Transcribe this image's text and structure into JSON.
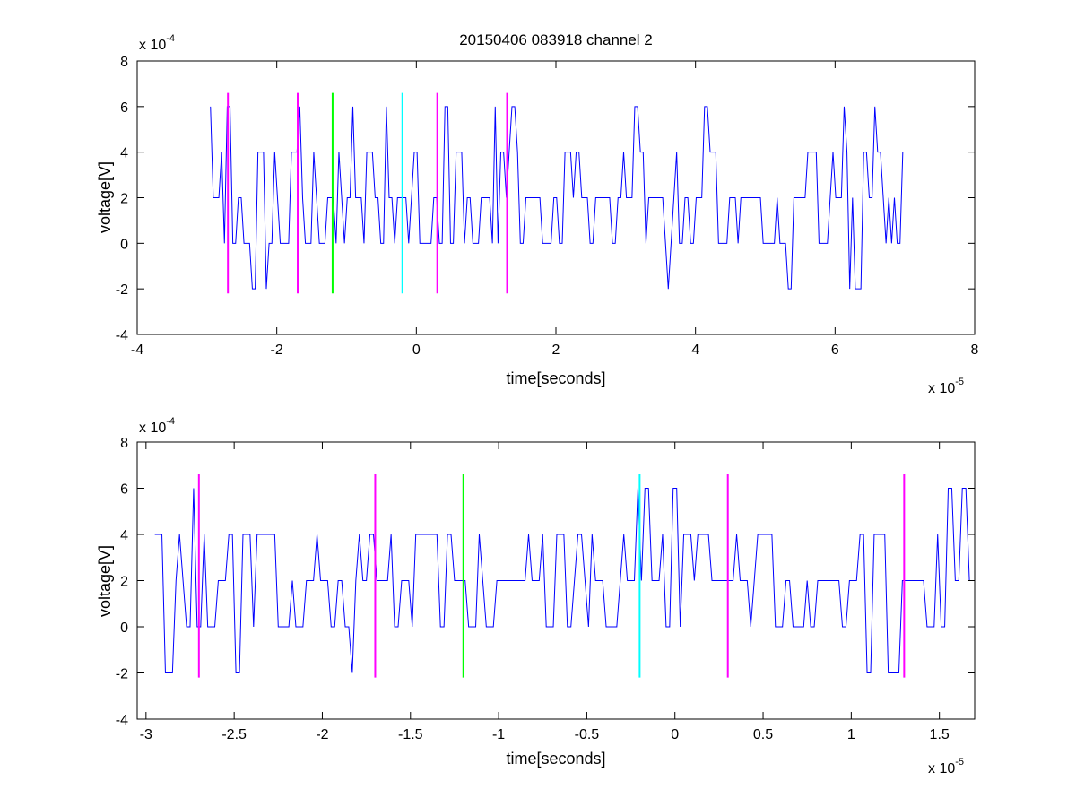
{
  "figure_title": "20150406 083918 channel 2",
  "colors": {
    "signal": "#0000ff",
    "marker_magenta": "#ff00ff",
    "marker_green": "#00ff00",
    "marker_cyan": "#00ffff",
    "axes": "#000000",
    "background": "#ffffff"
  },
  "chart_data": [
    {
      "type": "line",
      "title": "20150406 083918 channel 2",
      "xlabel": "time[seconds]",
      "ylabel": "voltage[V]",
      "xlim": [
        -4,
        8
      ],
      "ylim": [
        -4,
        8
      ],
      "x_exponent_label": {
        "base": "x 10",
        "exp": "-5"
      },
      "y_exponent_label": {
        "base": "x 10",
        "exp": "-4"
      },
      "x_ticks": [
        -4,
        -2,
        0,
        2,
        4,
        6,
        8
      ],
      "x_tick_labels": [
        "-4",
        "-2",
        "0",
        "2",
        "4",
        "6",
        "8"
      ],
      "y_ticks": [
        -4,
        -2,
        0,
        2,
        4,
        6,
        8
      ],
      "y_tick_labels": [
        "-4",
        "-2",
        "0",
        "2",
        "4",
        "6",
        "8"
      ],
      "grid": false,
      "series": [
        {
          "x_start": -2.95,
          "x_end": 7.0,
          "step": 0.04,
          "seed": 20150406,
          "levels": [
            -2,
            0,
            2,
            4,
            6
          ],
          "level_weights": [
            0.05,
            0.25,
            0.42,
            0.24,
            0.04
          ],
          "hold_probability": 0.35
        }
      ],
      "markers": [
        {
          "x": -2.7,
          "color": "marker_magenta",
          "y_range": [
            -2.2,
            6.6
          ]
        },
        {
          "x": -1.7,
          "color": "marker_magenta",
          "y_range": [
            -2.2,
            6.6
          ]
        },
        {
          "x": -1.2,
          "color": "marker_green",
          "y_range": [
            -2.2,
            6.6
          ]
        },
        {
          "x": -0.2,
          "color": "marker_cyan",
          "y_range": [
            -2.2,
            6.6
          ]
        },
        {
          "x": 0.3,
          "color": "marker_magenta",
          "y_range": [
            -2.2,
            6.6
          ]
        },
        {
          "x": 1.3,
          "color": "marker_magenta",
          "y_range": [
            -2.2,
            6.6
          ]
        }
      ]
    },
    {
      "type": "line",
      "title": "",
      "xlabel": "time[seconds]",
      "ylabel": "voltage[V]",
      "xlim": [
        -3.05,
        1.7
      ],
      "ylim": [
        -4,
        8
      ],
      "x_exponent_label": {
        "base": "x 10",
        "exp": "-5"
      },
      "y_exponent_label": {
        "base": "x 10",
        "exp": "-4"
      },
      "x_ticks": [
        -3,
        -2.5,
        -2,
        -1.5,
        -1,
        -0.5,
        0,
        0.5,
        1,
        1.5
      ],
      "x_tick_labels": [
        "-3",
        "-2.5",
        "-2",
        "-1.5",
        "-1",
        "-0.5",
        "0",
        "0.5",
        "1",
        "1.5"
      ],
      "y_ticks": [
        -4,
        -2,
        0,
        2,
        4,
        6,
        8
      ],
      "y_tick_labels": [
        "-4",
        "-2",
        "0",
        "2",
        "4",
        "6",
        "8"
      ],
      "grid": false,
      "series": [
        {
          "x_start": -2.95,
          "x_end": 1.7,
          "step": 0.02,
          "seed": 83918,
          "levels": [
            -2,
            0,
            2,
            4,
            6
          ],
          "level_weights": [
            0.05,
            0.25,
            0.45,
            0.22,
            0.03
          ],
          "hold_probability": 0.4
        }
      ],
      "markers": [
        {
          "x": -2.7,
          "color": "marker_magenta",
          "y_range": [
            -2.2,
            6.6
          ]
        },
        {
          "x": -1.7,
          "color": "marker_magenta",
          "y_range": [
            -2.2,
            6.6
          ]
        },
        {
          "x": -1.2,
          "color": "marker_green",
          "y_range": [
            -2.2,
            6.6
          ]
        },
        {
          "x": -0.2,
          "color": "marker_cyan",
          "y_range": [
            -2.2,
            6.6
          ]
        },
        {
          "x": 0.3,
          "color": "marker_magenta",
          "y_range": [
            -2.2,
            6.6
          ]
        },
        {
          "x": 1.3,
          "color": "marker_magenta",
          "y_range": [
            -2.2,
            6.6
          ]
        }
      ]
    }
  ]
}
